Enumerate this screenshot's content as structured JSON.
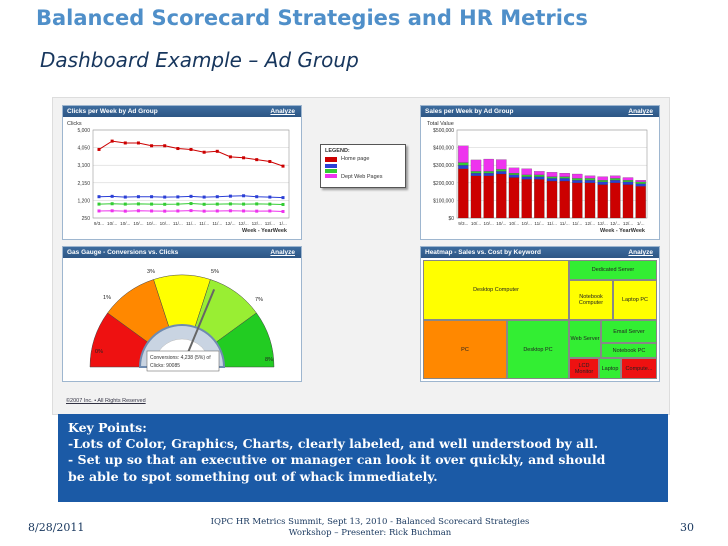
{
  "slide": {
    "title": "Balanced Scorecard Strategies and HR Metrics",
    "subtitle": "Dashboard Example – Ad Group",
    "footer_date": "8/28/2011",
    "footer_center_line1": "IQPC HR Metrics Summit, Sept 13, 2010  -  Balanced Scorecard Strategies",
    "footer_center_line2": "Workshop – Presenter: Rick Buchman",
    "page_number": "30"
  },
  "key_points": {
    "heading": "Key Points:",
    "lines": [
      "-Lots of Color, Graphics, Charts, clearly labeled, and well understood by all.",
      "- Set up so that an executive or manager can look it over quickly, and should",
      "be able to spot something out of whack immediately."
    ]
  },
  "panels": {
    "clicks": {
      "title": "Clicks per Week by Ad Group",
      "analyze": "Analyze",
      "ylabel": "Clicks",
      "xlabel": "Week - YearWeek"
    },
    "sales": {
      "title": "Sales per Week by Ad Group",
      "analyze": "Analyze",
      "ylabel": "Total Value",
      "xlabel": "Week - YearWeek"
    },
    "gauge": {
      "title": "Gas Gauge - Conversions vs. Clicks",
      "analyze": "Analyze",
      "conversions_label": "Conversions:",
      "conversions_value": "4,238 (5%) of",
      "clicks_label": "Clicks:",
      "clicks_value": "90085"
    },
    "heatmap": {
      "title": "Heatmap - Sales vs. Cost by Keyword",
      "analyze": "Analyze"
    }
  },
  "legend": {
    "heading": "LEGEND:",
    "items": [
      "Home page",
      "Dept Web Pages"
    ]
  },
  "copyright": "©2007 Inc. • All Rights Reserved",
  "colors": {
    "accent": "#1b5aa6",
    "title": "#4f8fc9",
    "red": "#cc0000",
    "blue": "#2b3fd6",
    "green": "#33cc33",
    "magenta": "#ee33ee"
  },
  "chart_data": [
    {
      "type": "line",
      "title": "Clicks per Week by Ad Group",
      "ylabel": "Clicks",
      "xlabel": "Week - YearWeek",
      "ylim": [
        250,
        5000
      ],
      "yticks": [
        "5,000",
        "4,050",
        "3,100",
        "2,150",
        "1,200",
        "250"
      ],
      "categories": [
        "9/3...",
        "10/...",
        "10/...",
        "10/...",
        "10/...",
        "10/...",
        "11/...",
        "11/...",
        "11/...",
        "11/...",
        "12/...",
        "12/...",
        "12/...",
        "12/...",
        "1/..."
      ],
      "series": [
        {
          "color": "#cc0000",
          "values": [
            3950,
            4400,
            4300,
            4300,
            4150,
            4150,
            4000,
            3950,
            3800,
            3850,
            3550,
            3500,
            3400,
            3300,
            3050
          ]
        },
        {
          "color": "#2b3fd6",
          "values": [
            1400,
            1420,
            1380,
            1400,
            1400,
            1380,
            1390,
            1420,
            1380,
            1400,
            1430,
            1450,
            1400,
            1380,
            1350
          ]
        },
        {
          "color": "#33cc33",
          "values": [
            1000,
            1020,
            1000,
            1010,
            1000,
            990,
            1000,
            1030,
            990,
            1000,
            1010,
            1000,
            1010,
            1000,
            980
          ]
        },
        {
          "color": "#ee33ee",
          "values": [
            630,
            640,
            620,
            640,
            630,
            620,
            630,
            650,
            620,
            630,
            640,
            630,
            620,
            630,
            600
          ]
        }
      ]
    },
    {
      "type": "bar",
      "title": "Sales per Week by Ad Group",
      "ylabel": "Total Value",
      "xlabel": "Week - YearWeek",
      "ylim": [
        0,
        500000
      ],
      "yticks": [
        "$500,000",
        "$400,000",
        "$300,000",
        "$200,000",
        "$100,000",
        "$0"
      ],
      "categories": [
        "9/3...",
        "10/...",
        "10/...",
        "10/...",
        "10/...",
        "10/...",
        "11/...",
        "11/...",
        "11/...",
        "11/...",
        "12/...",
        "12/...",
        "12/...",
        "12/...",
        "1/..."
      ],
      "series": [
        {
          "color": "#cc0000",
          "values": [
            280000,
            240000,
            240000,
            250000,
            230000,
            220000,
            220000,
            210000,
            210000,
            200000,
            200000,
            190000,
            200000,
            190000,
            180000
          ]
        },
        {
          "color": "#2b3fd6",
          "values": [
            20000,
            15000,
            15000,
            15000,
            15000,
            15000,
            15000,
            15000,
            15000,
            15000,
            15000,
            15000,
            15000,
            15000,
            15000
          ]
        },
        {
          "color": "#33cc33",
          "values": [
            15000,
            10000,
            10000,
            12000,
            10000,
            10000,
            10000,
            10000,
            10000,
            10000,
            10000,
            10000,
            10000,
            10000,
            10000
          ]
        },
        {
          "color": "#ee33ee",
          "values": [
            95000,
            65000,
            70000,
            55000,
            30000,
            35000,
            20000,
            25000,
            20000,
            25000,
            15000,
            20000,
            15000,
            15000,
            10000
          ]
        }
      ]
    },
    {
      "type": "gauge",
      "title": "Gas Gauge - Conversions vs. Clicks",
      "segments": [
        {
          "label": "0%",
          "color": "#ee1111"
        },
        {
          "label": "1%",
          "color": "#ff8800"
        },
        {
          "label": "3%",
          "color": "#ffff00"
        },
        {
          "label": "5%",
          "color": "#99ee33"
        },
        {
          "label": "7%",
          "color": "#22cc22"
        },
        {
          "label": "8%",
          "color": "#22cc22"
        }
      ],
      "value_percent": 5
    },
    {
      "type": "heatmap",
      "title": "Heatmap - Sales vs. Cost by Keyword",
      "cells": [
        {
          "label": "Desktop Computer",
          "color": "#ffff00"
        },
        {
          "label": "Dedicated Server",
          "color": "#33ee33"
        },
        {
          "label": "Notebook Computer",
          "color": "#ffff00"
        },
        {
          "label": "Laptop PC",
          "color": "#ffff00"
        },
        {
          "label": "PC",
          "color": "#ff8800"
        },
        {
          "label": "Desktop PC",
          "color": "#33ee33"
        },
        {
          "label": "Web Server",
          "color": "#33ee33"
        },
        {
          "label": "Email Server",
          "color": "#33ee33"
        },
        {
          "label": "Notebook PC",
          "color": "#33ee33"
        },
        {
          "label": "LCD Monitor",
          "color": "#ee1111"
        },
        {
          "label": "Laptop",
          "color": "#33ee33"
        },
        {
          "label": "Compute...",
          "color": "#ee1111"
        }
      ]
    }
  ]
}
